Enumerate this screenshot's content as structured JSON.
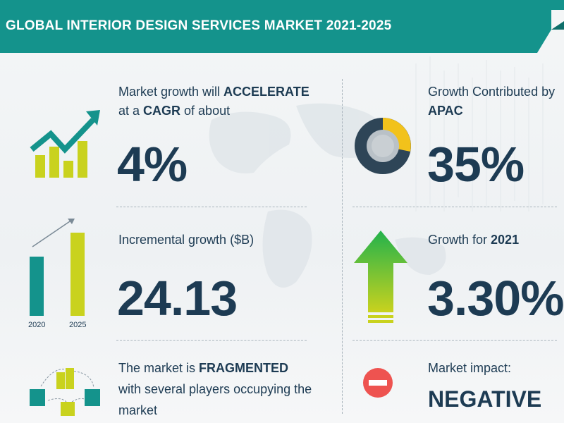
{
  "header": {
    "title": "GLOBAL INTERIOR DESIGN SERVICES MARKET 2021-2025"
  },
  "growth": {
    "line1_pre": "Market growth will ",
    "line1_bold": "ACCELERATE",
    "line2_pre": "at a ",
    "line2_bold": "CAGR",
    "line2_post": " of about",
    "value": "4%"
  },
  "apac": {
    "line1": "Growth Contributed by",
    "line2_bold": "APAC",
    "value": "35%"
  },
  "incremental": {
    "label": "Incremental growth ($B)",
    "value": "24.13",
    "year_start": "2020",
    "year_end": "2025"
  },
  "growth2021": {
    "label_pre": "Growth for ",
    "label_bold": "2021",
    "value": "3.30%"
  },
  "fragmented": {
    "line1_pre": "The market is ",
    "line1_bold": "FRAGMENTED",
    "line2": "with several players occupying the",
    "line3": "market"
  },
  "impact": {
    "label": "Market impact:",
    "value": "NEGATIVE"
  },
  "colors": {
    "teal": "#14938c",
    "navy": "#1d3b53",
    "lime": "#c9d21e",
    "yellow": "#f2c21b",
    "red": "#ee5350",
    "green": "#22b24c"
  }
}
